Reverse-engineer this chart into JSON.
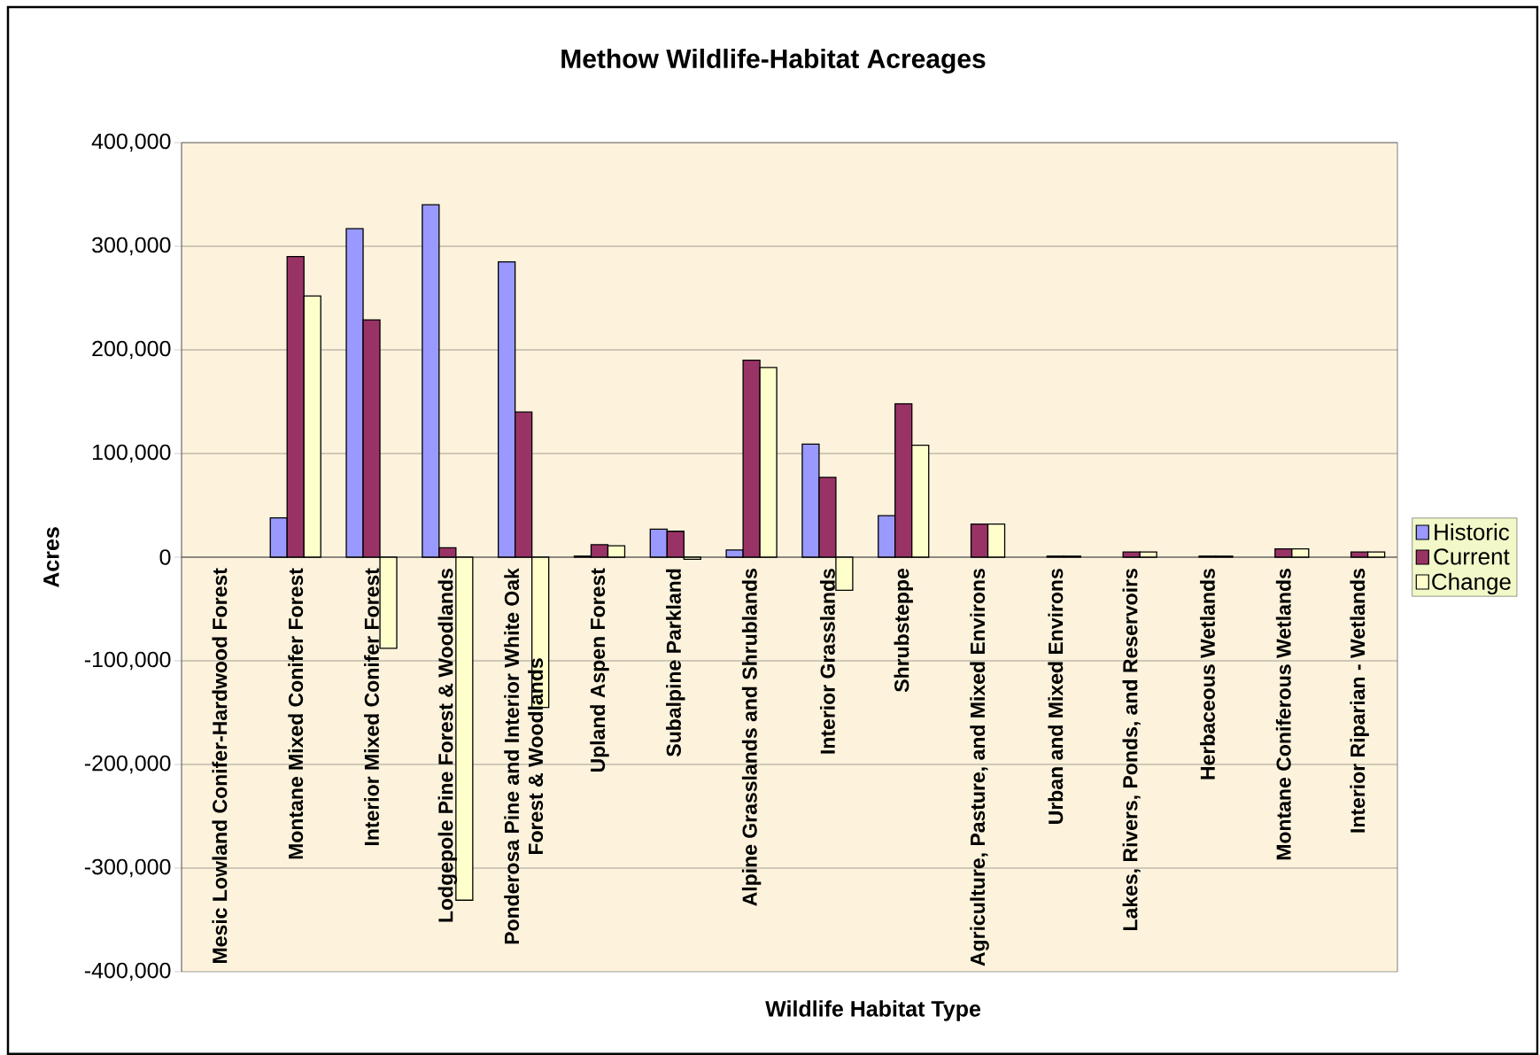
{
  "chart_data": {
    "type": "bar",
    "title": "Methow Wildlife-Habitat Acreages",
    "xlabel": "Wildlife Habitat Type",
    "ylabel": "Acres",
    "categories": [
      "Mesic Lowland Conifer-Hardwood Forest",
      "Montane Mixed Conifer Forest",
      "Interior Mixed Conifer Forest",
      "Lodgepole Pine Forest & Woodlands",
      "Ponderosa Pine and Interior White Oak Forest & Woodlands",
      "Upland Aspen Forest",
      "Subalpine Parkland",
      "Alpine Grasslands and Shrublands",
      "Interior Grasslands",
      "Shrubsteppe",
      "Agriculture, Pasture, and Mixed Environs",
      "Urban and Mixed Environs",
      "Lakes, Rivers, Ponds, and Reservoirs",
      "Herbaceous Wetlands",
      "Montane Coniferous Wetlands",
      "Interior Riparian - Wetlands"
    ],
    "series": [
      {
        "name": "Historic",
        "color": "#9999ff",
        "values": [
          null,
          38000,
          317000,
          340000,
          285000,
          1000,
          27000,
          7000,
          109000,
          40000,
          null,
          null,
          null,
          null,
          null,
          null
        ]
      },
      {
        "name": "Current",
        "color": "#993366",
        "values": [
          null,
          290000,
          229000,
          9000,
          140000,
          12000,
          25000,
          190000,
          77000,
          148000,
          32000,
          1000,
          5000,
          1000,
          8000,
          5000
        ]
      },
      {
        "name": "Change",
        "color": "#ffffcc",
        "values": [
          null,
          252000,
          -88000,
          -331000,
          -145000,
          11000,
          -2000,
          183000,
          -32000,
          108000,
          32000,
          1000,
          5000,
          1000,
          8000,
          5000
        ]
      }
    ],
    "ylim": [
      -400000,
      400000
    ],
    "yticks": [
      {
        "value": -400000,
        "label": "-400,000"
      },
      {
        "value": -300000,
        "label": "-300,000"
      },
      {
        "value": -200000,
        "label": "-200,000"
      },
      {
        "value": -100000,
        "label": "-100,000"
      },
      {
        "value": 0,
        "label": "0"
      },
      {
        "value": 100000,
        "label": "100,000"
      },
      {
        "value": 200000,
        "label": "200,000"
      },
      {
        "value": 300000,
        "label": "300,000"
      },
      {
        "value": 400000,
        "label": "400,000"
      }
    ],
    "grid": "y",
    "legend": "right"
  }
}
